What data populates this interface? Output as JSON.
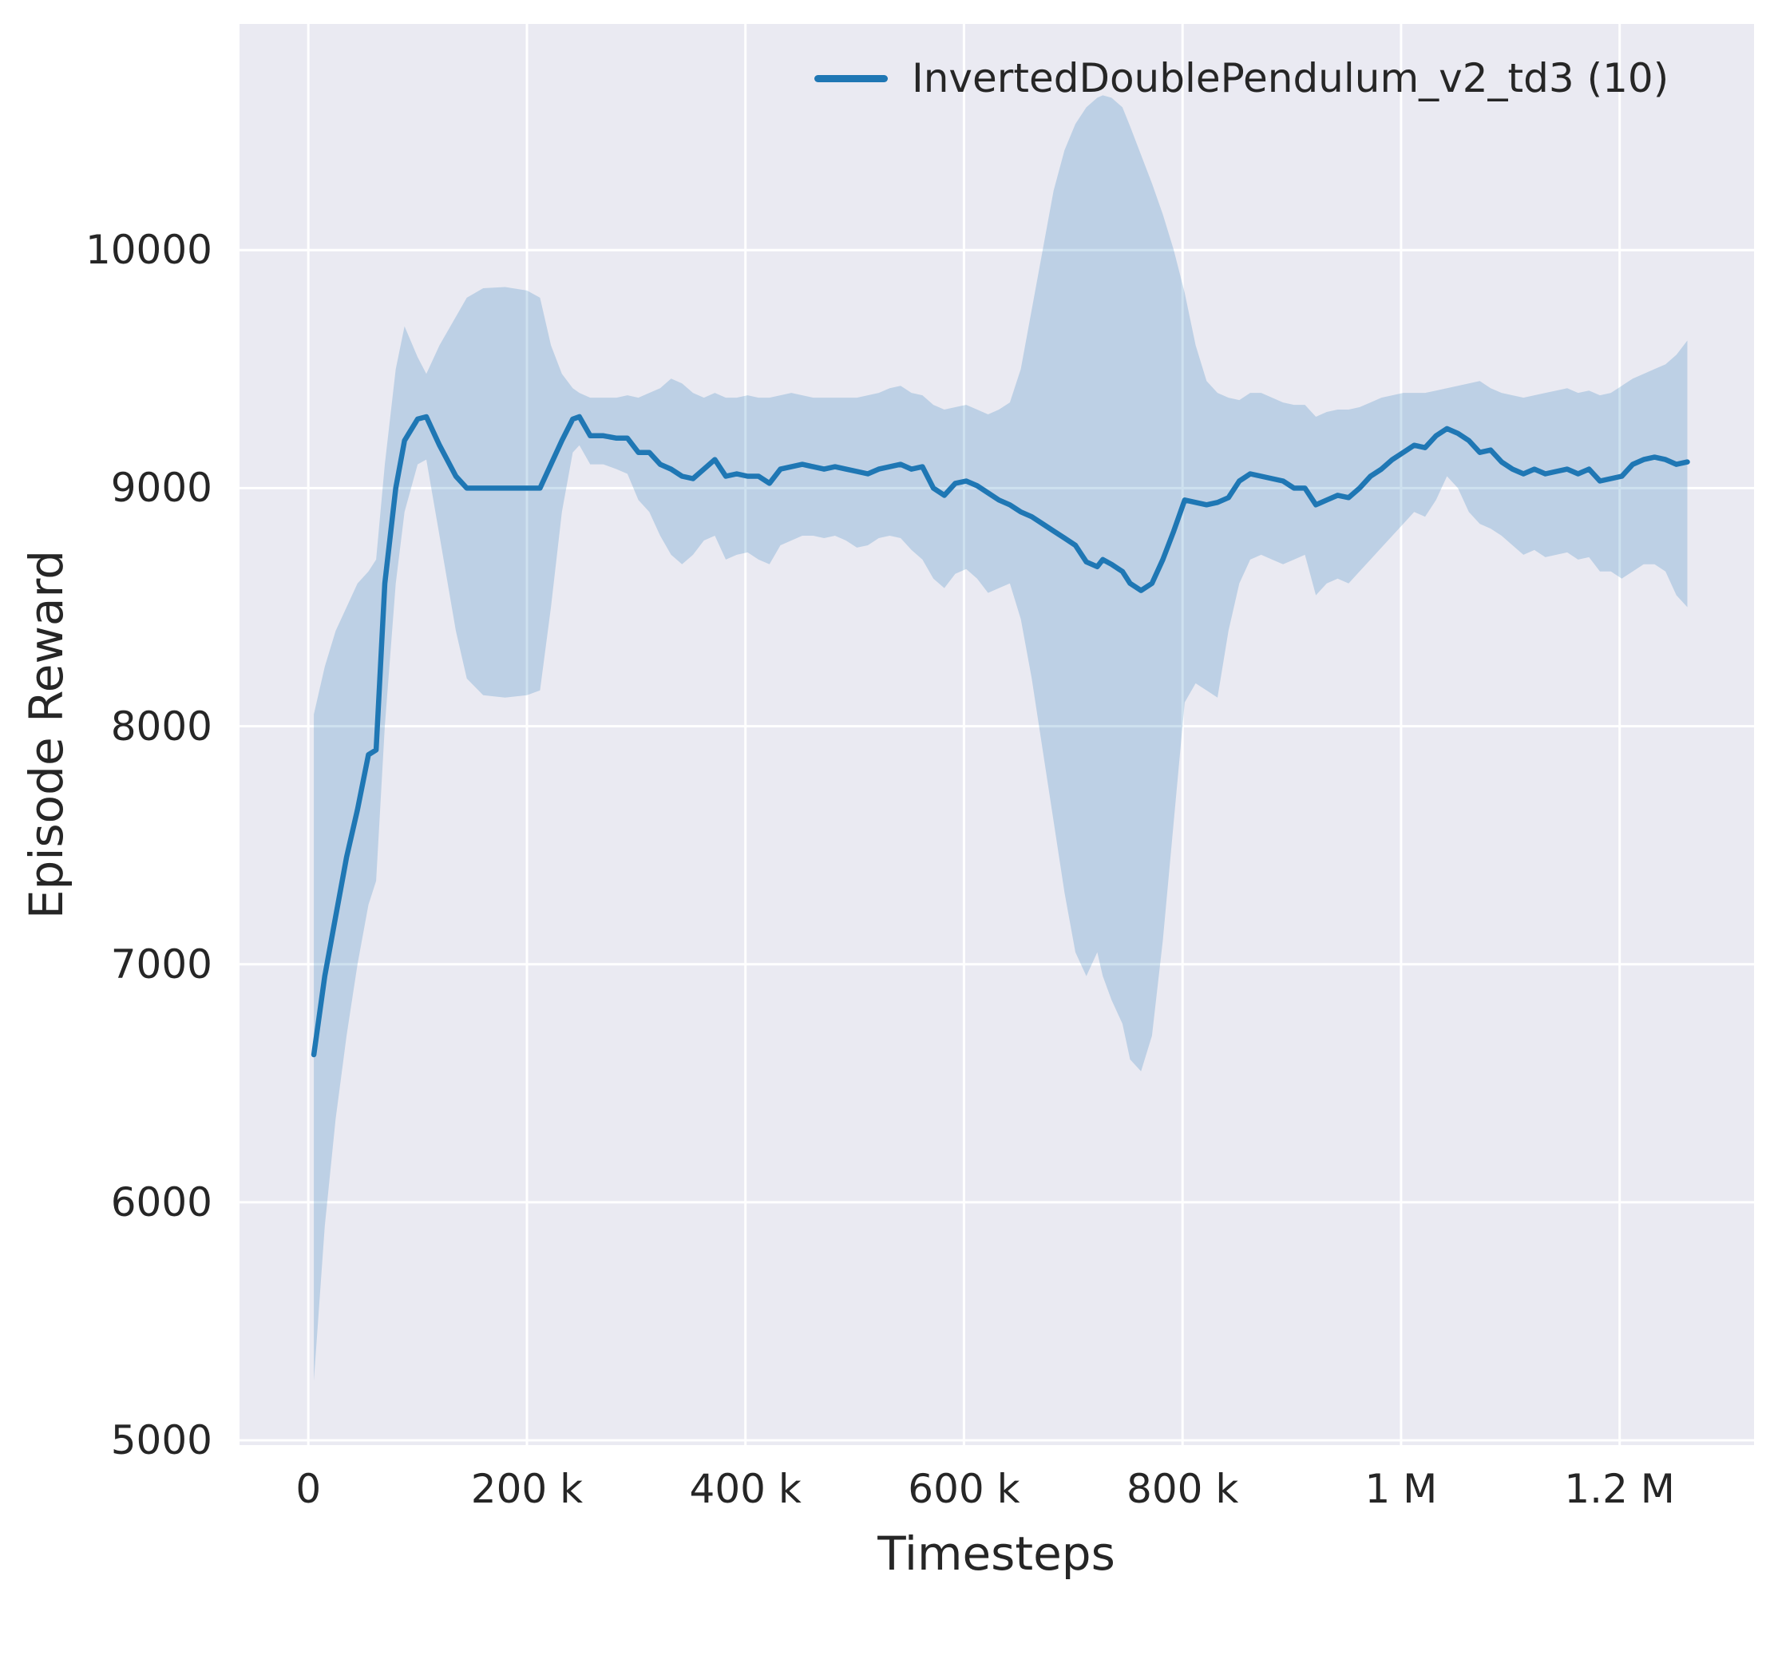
{
  "chart_data": {
    "type": "line",
    "title": "",
    "xlabel": "Timesteps",
    "ylabel": "Episode Reward",
    "grid": true,
    "legend": {
      "label": "InvertedDoublePendulum_v2_td3 (10)",
      "position": "upper center"
    },
    "style": {
      "plot_bg": "#eaeaf2",
      "grid_color": "#ffffff",
      "line_color": "#1f77b4",
      "band_opacity": 0.22,
      "text_color": "#262626"
    },
    "xlim": [
      -63000,
      1323000
    ],
    "ylim": [
      4980,
      10950
    ],
    "x_ticks": [
      {
        "value": 0,
        "label": "0"
      },
      {
        "value": 200000,
        "label": "200 k"
      },
      {
        "value": 400000,
        "label": "400 k"
      },
      {
        "value": 600000,
        "label": "600 k"
      },
      {
        "value": 800000,
        "label": "800 k"
      },
      {
        "value": 1000000,
        "label": "1 M"
      },
      {
        "value": 1200000,
        "label": "1.2 M"
      }
    ],
    "y_ticks": [
      {
        "value": 5000,
        "label": "5000"
      },
      {
        "value": 6000,
        "label": "6000"
      },
      {
        "value": 7000,
        "label": "7000"
      },
      {
        "value": 8000,
        "label": "8000"
      },
      {
        "value": 9000,
        "label": "9000"
      },
      {
        "value": 10000,
        "label": "10000"
      }
    ],
    "series": [
      {
        "name": "InvertedDoublePendulum_v2_td3 (10)",
        "points_format": [
          "timesteps",
          "mean_reward",
          "band_lower",
          "band_upper"
        ],
        "points": [
          [
            5000,
            6620,
            5250,
            8050
          ],
          [
            15000,
            6950,
            5900,
            8250
          ],
          [
            25000,
            7200,
            6350,
            8400
          ],
          [
            35000,
            7450,
            6700,
            8500
          ],
          [
            45000,
            7650,
            7000,
            8600
          ],
          [
            55000,
            7880,
            7250,
            8650
          ],
          [
            62000,
            7900,
            7350,
            8700
          ],
          [
            70000,
            8600,
            8000,
            9100
          ],
          [
            80000,
            9000,
            8600,
            9500
          ],
          [
            88000,
            9200,
            8900,
            9680
          ],
          [
            100000,
            9290,
            9100,
            9550
          ],
          [
            108000,
            9300,
            9120,
            9480
          ],
          [
            120000,
            9180,
            8800,
            9600
          ],
          [
            135000,
            9050,
            8400,
            9720
          ],
          [
            145000,
            9000,
            8200,
            9800
          ],
          [
            160000,
            9000,
            8130,
            9840
          ],
          [
            180000,
            9000,
            8120,
            9845
          ],
          [
            200000,
            9000,
            8130,
            9830
          ],
          [
            212000,
            9000,
            8150,
            9800
          ],
          [
            222000,
            9100,
            8500,
            9600
          ],
          [
            232000,
            9200,
            8900,
            9480
          ],
          [
            242000,
            9290,
            9150,
            9420
          ],
          [
            248000,
            9300,
            9180,
            9400
          ],
          [
            258000,
            9220,
            9100,
            9380
          ],
          [
            270000,
            9220,
            9100,
            9380
          ],
          [
            282000,
            9210,
            9080,
            9380
          ],
          [
            292000,
            9210,
            9060,
            9390
          ],
          [
            302000,
            9150,
            8950,
            9380
          ],
          [
            312000,
            9150,
            8900,
            9400
          ],
          [
            322000,
            9100,
            8800,
            9420
          ],
          [
            332000,
            9080,
            8720,
            9460
          ],
          [
            342000,
            9050,
            8680,
            9440
          ],
          [
            352000,
            9040,
            8720,
            9400
          ],
          [
            362000,
            9080,
            8780,
            9380
          ],
          [
            372000,
            9120,
            8800,
            9400
          ],
          [
            382000,
            9050,
            8700,
            9380
          ],
          [
            392000,
            9060,
            8720,
            9380
          ],
          [
            402000,
            9050,
            8730,
            9390
          ],
          [
            412000,
            9050,
            8700,
            9380
          ],
          [
            422000,
            9020,
            8680,
            9380
          ],
          [
            432000,
            9080,
            8760,
            9390
          ],
          [
            442000,
            9090,
            8780,
            9400
          ],
          [
            452000,
            9100,
            8800,
            9390
          ],
          [
            462000,
            9090,
            8800,
            9380
          ],
          [
            472000,
            9080,
            8790,
            9380
          ],
          [
            482000,
            9090,
            8800,
            9380
          ],
          [
            492000,
            9080,
            8780,
            9380
          ],
          [
            502000,
            9070,
            8750,
            9380
          ],
          [
            512000,
            9060,
            8760,
            9390
          ],
          [
            522000,
            9080,
            8790,
            9400
          ],
          [
            532000,
            9090,
            8800,
            9420
          ],
          [
            542000,
            9100,
            8790,
            9430
          ],
          [
            552000,
            9080,
            8740,
            9400
          ],
          [
            562000,
            9090,
            8700,
            9390
          ],
          [
            572000,
            9000,
            8620,
            9350
          ],
          [
            582000,
            8970,
            8580,
            9330
          ],
          [
            592000,
            9020,
            8640,
            9340
          ],
          [
            602000,
            9030,
            8660,
            9350
          ],
          [
            612000,
            9010,
            8620,
            9330
          ],
          [
            622000,
            8980,
            8560,
            9310
          ],
          [
            632000,
            8950,
            8580,
            9330
          ],
          [
            642000,
            8930,
            8600,
            9360
          ],
          [
            652000,
            8900,
            8450,
            9500
          ],
          [
            662000,
            8880,
            8200,
            9750
          ],
          [
            672000,
            8850,
            7900,
            10000
          ],
          [
            682000,
            8820,
            7600,
            10250
          ],
          [
            692000,
            8790,
            7300,
            10420
          ],
          [
            702000,
            8760,
            7050,
            10530
          ],
          [
            712000,
            8690,
            6950,
            10600
          ],
          [
            722000,
            8670,
            7050,
            10640
          ],
          [
            727000,
            8700,
            6950,
            10650
          ],
          [
            735000,
            8680,
            6850,
            10640
          ],
          [
            745000,
            8650,
            6750,
            10600
          ],
          [
            752000,
            8600,
            6600,
            10520
          ],
          [
            762000,
            8570,
            6550,
            10400
          ],
          [
            772000,
            8600,
            6700,
            10280
          ],
          [
            782000,
            8700,
            7100,
            10150
          ],
          [
            792000,
            8820,
            7600,
            10000
          ],
          [
            802000,
            8950,
            8100,
            9820
          ],
          [
            812000,
            8940,
            8180,
            9600
          ],
          [
            822000,
            8930,
            8150,
            9450
          ],
          [
            832000,
            8940,
            8120,
            9400
          ],
          [
            842000,
            8960,
            8400,
            9380
          ],
          [
            852000,
            9030,
            8600,
            9370
          ],
          [
            862000,
            9060,
            8700,
            9400
          ],
          [
            872000,
            9050,
            8720,
            9400
          ],
          [
            882000,
            9040,
            8700,
            9380
          ],
          [
            892000,
            9030,
            8680,
            9360
          ],
          [
            902000,
            9000,
            8700,
            9350
          ],
          [
            912000,
            9000,
            8720,
            9350
          ],
          [
            922000,
            8930,
            8550,
            9300
          ],
          [
            932000,
            8950,
            8600,
            9320
          ],
          [
            942000,
            8970,
            8620,
            9330
          ],
          [
            952000,
            8960,
            8600,
            9330
          ],
          [
            962000,
            9000,
            8650,
            9340
          ],
          [
            972000,
            9050,
            8700,
            9360
          ],
          [
            982000,
            9080,
            8750,
            9380
          ],
          [
            992000,
            9120,
            8800,
            9390
          ],
          [
            1002000,
            9150,
            8850,
            9400
          ],
          [
            1012000,
            9180,
            8900,
            9400
          ],
          [
            1022000,
            9170,
            8880,
            9400
          ],
          [
            1032000,
            9220,
            8950,
            9410
          ],
          [
            1042000,
            9250,
            9050,
            9420
          ],
          [
            1052000,
            9230,
            9000,
            9430
          ],
          [
            1062000,
            9200,
            8900,
            9440
          ],
          [
            1072000,
            9150,
            8850,
            9450
          ],
          [
            1082000,
            9160,
            8830,
            9420
          ],
          [
            1092000,
            9110,
            8800,
            9400
          ],
          [
            1102000,
            9080,
            8760,
            9390
          ],
          [
            1112000,
            9060,
            8720,
            9380
          ],
          [
            1122000,
            9080,
            8740,
            9390
          ],
          [
            1132000,
            9060,
            8710,
            9400
          ],
          [
            1142000,
            9070,
            8720,
            9410
          ],
          [
            1152000,
            9080,
            8730,
            9420
          ],
          [
            1162000,
            9060,
            8700,
            9400
          ],
          [
            1172000,
            9080,
            8710,
            9410
          ],
          [
            1182000,
            9030,
            8650,
            9390
          ],
          [
            1192000,
            9040,
            8650,
            9400
          ],
          [
            1202000,
            9050,
            8620,
            9430
          ],
          [
            1212000,
            9100,
            8650,
            9460
          ],
          [
            1222000,
            9120,
            8680,
            9480
          ],
          [
            1232000,
            9130,
            8680,
            9500
          ],
          [
            1242000,
            9120,
            8650,
            9520
          ],
          [
            1252000,
            9100,
            8550,
            9560
          ],
          [
            1262000,
            9110,
            8500,
            9620
          ]
        ]
      }
    ]
  }
}
